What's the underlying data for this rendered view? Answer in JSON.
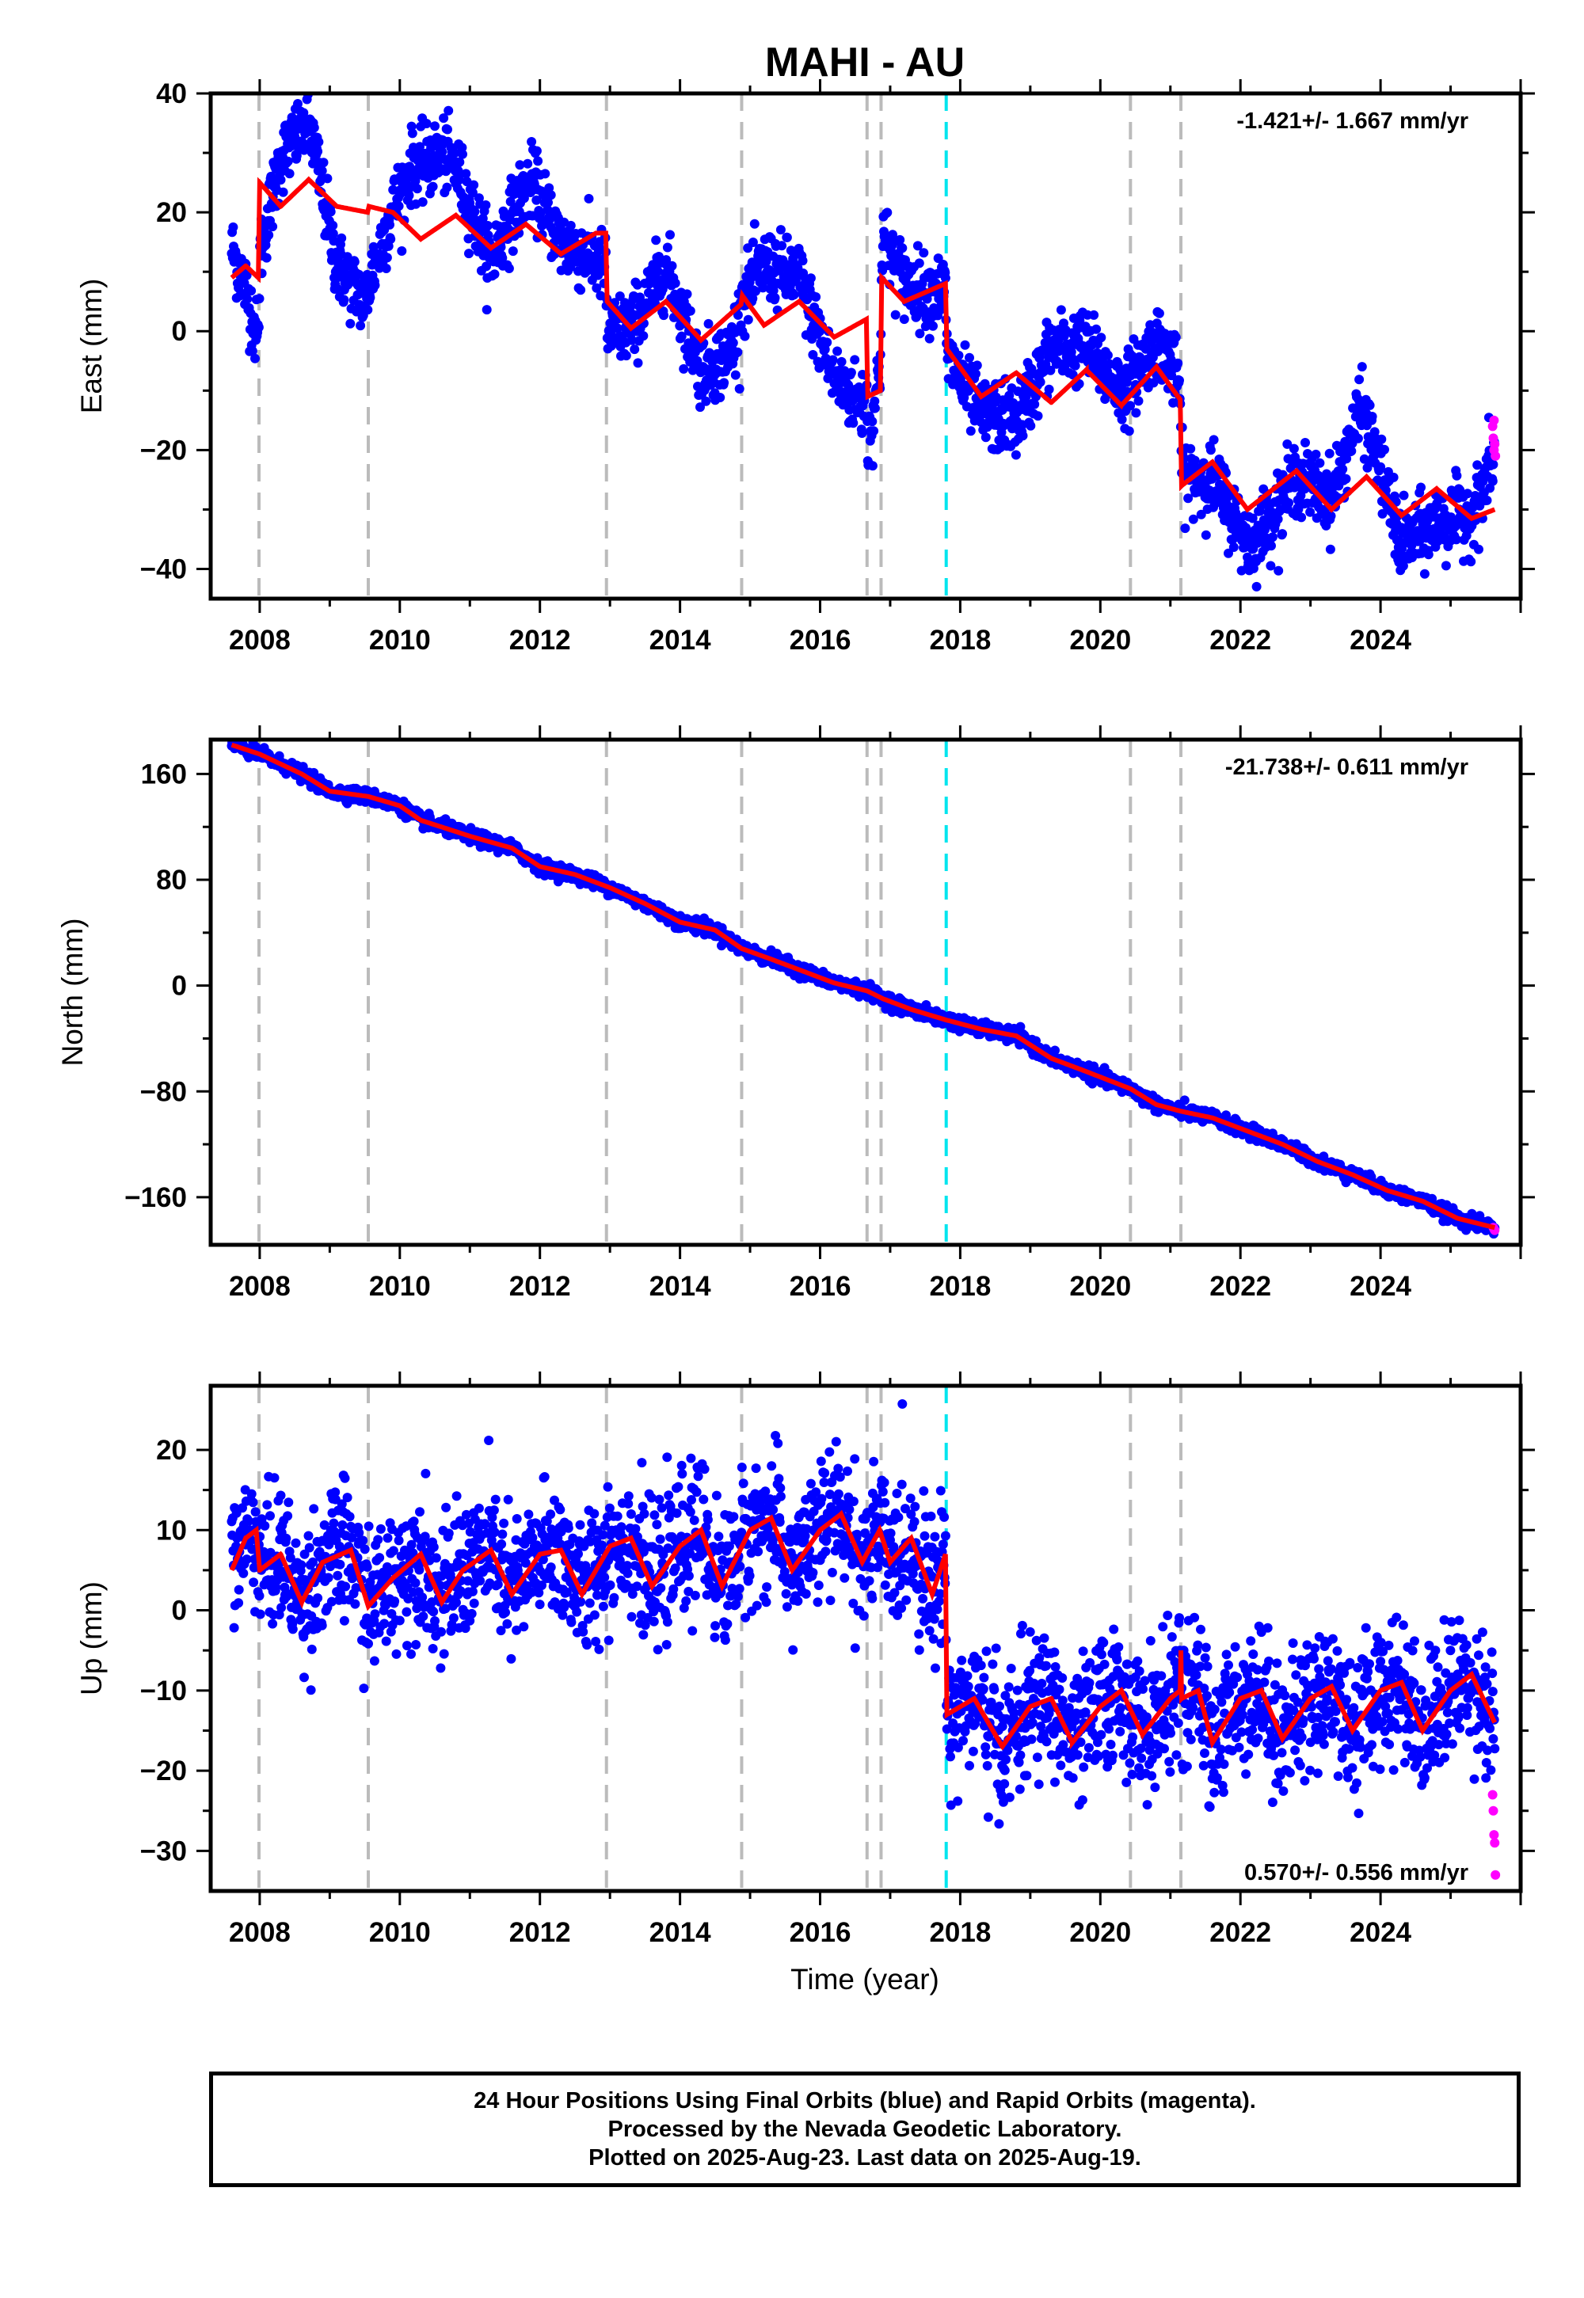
{
  "chart_data": {
    "type": "scatter",
    "title": "MAHI - AU",
    "xlabel": "Time (year)",
    "x_ticks": [
      "2008",
      "2010",
      "2012",
      "2014",
      "2016",
      "2018",
      "2020",
      "2022",
      "2024"
    ],
    "xlim": [
      2007.3,
      2026.0
    ],
    "x_start": 2007.6,
    "x_end": 2025.63,
    "legend": {
      "final_orbits": "blue",
      "rapid_orbits": "magenta",
      "model": "red"
    },
    "colors": {
      "final": "#0000ff",
      "rapid": "#ff00ff",
      "model": "#ff0000",
      "gray_line": "#bbbbbb",
      "cyan_line": "#00e5ee"
    },
    "gray_event_lines": [
      2007.99,
      2009.55,
      2012.95,
      2014.88,
      2016.67,
      2016.87,
      2020.43,
      2021.15
    ],
    "cyan_event_line": 2017.8,
    "panels": [
      {
        "id": "east",
        "ylabel": "East (mm)",
        "ylim": [
          -45,
          40
        ],
        "y_ticks": [
          "40",
          "20",
          "0",
          "−20",
          "−40"
        ],
        "y_tick_values": [
          40,
          20,
          0,
          -20,
          -40
        ],
        "rate_label": "-1.421+/- 1.667 mm/yr",
        "rate_position": "top-right",
        "rate": -1.421,
        "rate_sigma": 1.667,
        "scatter_sd": 3.0,
        "model_knots": [
          [
            2007.6,
            9
          ],
          [
            2007.8,
            11
          ],
          [
            2007.98,
            9
          ],
          [
            2008.0,
            25
          ],
          [
            2008.3,
            21
          ],
          [
            2008.7,
            25.5
          ],
          [
            2009.1,
            21
          ],
          [
            2009.54,
            20
          ],
          [
            2009.56,
            21
          ],
          [
            2009.9,
            20
          ],
          [
            2010.3,
            15.5
          ],
          [
            2010.8,
            19.5
          ],
          [
            2011.3,
            14
          ],
          [
            2011.8,
            18
          ],
          [
            2012.3,
            13
          ],
          [
            2012.8,
            16.5
          ],
          [
            2012.94,
            16.5
          ],
          [
            2012.96,
            5
          ],
          [
            2013.3,
            0.5
          ],
          [
            2013.8,
            5
          ],
          [
            2014.3,
            -1.5
          ],
          [
            2014.87,
            4.5
          ],
          [
            2014.89,
            6
          ],
          [
            2015.2,
            1
          ],
          [
            2015.7,
            5
          ],
          [
            2016.2,
            -1
          ],
          [
            2016.66,
            2
          ],
          [
            2016.68,
            -11
          ],
          [
            2016.86,
            -10
          ],
          [
            2016.88,
            9
          ],
          [
            2017.2,
            5
          ],
          [
            2017.79,
            8
          ],
          [
            2017.81,
            -3
          ],
          [
            2018.3,
            -11
          ],
          [
            2018.8,
            -7
          ],
          [
            2019.3,
            -12
          ],
          [
            2019.8,
            -6.5
          ],
          [
            2020.3,
            -12.5
          ],
          [
            2020.8,
            -6
          ],
          [
            2021.14,
            -11.5
          ],
          [
            2021.16,
            -26
          ],
          [
            2021.6,
            -22
          ],
          [
            2022.1,
            -30
          ],
          [
            2022.8,
            -23.5
          ],
          [
            2023.3,
            -30
          ],
          [
            2023.8,
            -24.5
          ],
          [
            2024.3,
            -31
          ],
          [
            2024.8,
            -26.5
          ],
          [
            2025.3,
            -31.5
          ],
          [
            2025.63,
            -30
          ]
        ],
        "blue_offset_knots": [
          [
            2007.6,
            5
          ],
          [
            2008.0,
            -12
          ],
          [
            2008.3,
            8
          ],
          [
            2008.7,
            10
          ],
          [
            2009.1,
            -10
          ],
          [
            2009.5,
            -15
          ],
          [
            2010.2,
            12
          ],
          [
            2010.6,
            12
          ],
          [
            2011.3,
            -2
          ],
          [
            2011.9,
            8
          ],
          [
            2012.3,
            2
          ],
          [
            2012.9,
            -6
          ],
          [
            2013.3,
            0
          ],
          [
            2013.8,
            6
          ],
          [
            2014.3,
            -5
          ],
          [
            2014.7,
            -7
          ],
          [
            2015.2,
            10
          ],
          [
            2015.7,
            4
          ],
          [
            2016.2,
            -7
          ],
          [
            2016.6,
            -14
          ],
          [
            2016.9,
            7
          ],
          [
            2017.5,
            0
          ],
          [
            2018.3,
            -3
          ],
          [
            2018.8,
            -8
          ],
          [
            2019.3,
            9
          ],
          [
            2019.8,
            4
          ],
          [
            2020.4,
            2
          ],
          [
            2020.9,
            5
          ],
          [
            2021.5,
            -2
          ],
          [
            2022.2,
            -6
          ],
          [
            2022.8,
            -1
          ],
          [
            2023.3,
            2
          ],
          [
            2023.7,
            12
          ],
          [
            2024.3,
            -5
          ],
          [
            2024.8,
            -6
          ],
          [
            2025.4,
            2
          ],
          [
            2025.6,
            9
          ]
        ],
        "rapid_points": [
          [
            2025.6,
            -16
          ],
          [
            2025.61,
            -18
          ],
          [
            2025.62,
            -20
          ],
          [
            2025.63,
            -19
          ],
          [
            2025.64,
            -21
          ],
          [
            2025.62,
            -15
          ]
        ]
      },
      {
        "id": "north",
        "ylabel": "North (mm)",
        "ylim": [
          -196,
          186
        ],
        "y_ticks": [
          "160",
          "80",
          "0",
          "−80",
          "−160"
        ],
        "y_tick_values": [
          160,
          80,
          0,
          -80,
          -160
        ],
        "rate_label": "-21.738+/- 0.611 mm/yr",
        "rate_position": "top-right",
        "rate": -21.738,
        "rate_sigma": 0.611,
        "scatter_sd": 2.5,
        "model_knots": [
          [
            2007.6,
            182
          ],
          [
            2008.0,
            175
          ],
          [
            2008.6,
            160
          ],
          [
            2009.0,
            147
          ],
          [
            2009.55,
            143
          ],
          [
            2010.0,
            136
          ],
          [
            2010.3,
            125
          ],
          [
            2011.0,
            113
          ],
          [
            2011.6,
            104
          ],
          [
            2012.0,
            90
          ],
          [
            2012.5,
            84
          ],
          [
            2013.0,
            74
          ],
          [
            2013.5,
            62
          ],
          [
            2014.0,
            48
          ],
          [
            2014.5,
            42
          ],
          [
            2014.88,
            28
          ],
          [
            2015.3,
            20
          ],
          [
            2015.8,
            10
          ],
          [
            2016.2,
            2
          ],
          [
            2016.67,
            -4
          ],
          [
            2016.9,
            -10
          ],
          [
            2017.3,
            -18
          ],
          [
            2017.8,
            -26
          ],
          [
            2018.3,
            -33
          ],
          [
            2018.8,
            -38
          ],
          [
            2019.3,
            -55
          ],
          [
            2019.8,
            -65
          ],
          [
            2020.43,
            -78
          ],
          [
            2020.8,
            -90
          ],
          [
            2021.15,
            -95
          ],
          [
            2021.6,
            -100
          ],
          [
            2022.1,
            -110
          ],
          [
            2022.6,
            -120
          ],
          [
            2023.1,
            -133
          ],
          [
            2023.6,
            -143
          ],
          [
            2024.1,
            -155
          ],
          [
            2024.6,
            -163
          ],
          [
            2025.1,
            -176
          ],
          [
            2025.63,
            -183
          ]
        ],
        "blue_offset_knots": [
          [
            2007.6,
            0
          ],
          [
            2025.63,
            0
          ]
        ],
        "rapid_points": [
          [
            2025.61,
            -183
          ],
          [
            2025.62,
            -184
          ],
          [
            2025.63,
            -185
          ]
        ]
      },
      {
        "id": "up",
        "ylabel": "Up (mm)",
        "ylim": [
          -35,
          28
        ],
        "y_ticks": [
          "20",
          "10",
          "0",
          "−10",
          "−20",
          "−30"
        ],
        "y_tick_values": [
          20,
          10,
          0,
          -10,
          -20,
          -30
        ],
        "rate_label": "0.570+/- 0.556 mm/yr",
        "rate_position": "bottom-right",
        "rate": 0.57,
        "rate_sigma": 0.556,
        "scatter_sd": 4.2,
        "model_knots": [
          [
            2007.6,
            5
          ],
          [
            2007.8,
            9
          ],
          [
            2007.95,
            10
          ],
          [
            2008.0,
            5
          ],
          [
            2008.3,
            7
          ],
          [
            2008.6,
            1
          ],
          [
            2008.9,
            6
          ],
          [
            2009.3,
            7.5
          ],
          [
            2009.55,
            0.5
          ],
          [
            2009.9,
            4
          ],
          [
            2010.3,
            7
          ],
          [
            2010.6,
            1
          ],
          [
            2010.9,
            5
          ],
          [
            2011.3,
            7.5
          ],
          [
            2011.6,
            2
          ],
          [
            2012.0,
            7
          ],
          [
            2012.3,
            7.5
          ],
          [
            2012.6,
            2
          ],
          [
            2013.0,
            8
          ],
          [
            2013.3,
            9
          ],
          [
            2013.6,
            3
          ],
          [
            2014.0,
            8
          ],
          [
            2014.3,
            10
          ],
          [
            2014.6,
            3
          ],
          [
            2015.0,
            10
          ],
          [
            2015.3,
            11.5
          ],
          [
            2015.6,
            5
          ],
          [
            2016.0,
            10
          ],
          [
            2016.3,
            12
          ],
          [
            2016.6,
            6
          ],
          [
            2016.85,
            10
          ],
          [
            2017.0,
            6
          ],
          [
            2017.3,
            9
          ],
          [
            2017.6,
            2
          ],
          [
            2017.79,
            7
          ],
          [
            2017.81,
            -13
          ],
          [
            2018.2,
            -11
          ],
          [
            2018.6,
            -17
          ],
          [
            2019.0,
            -12
          ],
          [
            2019.3,
            -11
          ],
          [
            2019.6,
            -16.5
          ],
          [
            2020.0,
            -12
          ],
          [
            2020.3,
            -10
          ],
          [
            2020.6,
            -15.5
          ],
          [
            2021.0,
            -11
          ],
          [
            2021.14,
            -10
          ],
          [
            2021.15,
            -5
          ],
          [
            2021.16,
            -11
          ],
          [
            2021.4,
            -10
          ],
          [
            2021.6,
            -16.5
          ],
          [
            2022.0,
            -11
          ],
          [
            2022.3,
            -10
          ],
          [
            2022.6,
            -16
          ],
          [
            2023.0,
            -11
          ],
          [
            2023.3,
            -9.5
          ],
          [
            2023.6,
            -15
          ],
          [
            2024.0,
            -10
          ],
          [
            2024.3,
            -9
          ],
          [
            2024.6,
            -15
          ],
          [
            2025.0,
            -10
          ],
          [
            2025.3,
            -8
          ],
          [
            2025.63,
            -14
          ]
        ],
        "blue_offset_knots": [
          [
            2007.6,
            0
          ],
          [
            2025.63,
            0
          ]
        ],
        "rapid_points": [
          [
            2025.6,
            -23
          ],
          [
            2025.61,
            -25
          ],
          [
            2025.62,
            -28
          ],
          [
            2025.63,
            -29
          ],
          [
            2025.64,
            -33
          ]
        ]
      }
    ]
  },
  "footer": {
    "line1": "24 Hour Positions Using Final Orbits (blue) and Rapid Orbits (magenta).",
    "line2": "Processed by the Nevada Geodetic Laboratory.",
    "line3": "Plotted on 2025-Aug-23. Last data on 2025-Aug-19."
  }
}
